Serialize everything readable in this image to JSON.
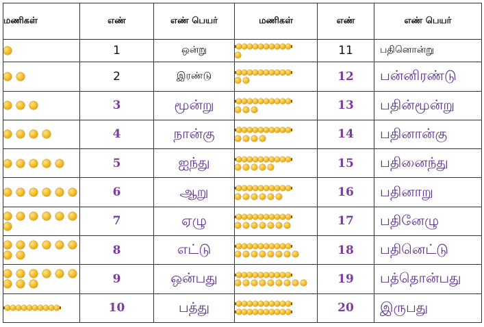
{
  "headers": {
    "beads": "மணிகள்",
    "number": "எண்",
    "name": "எண் பெயர்",
    "beads2": "மணிகள்",
    "number2": "எண்",
    "name2": "எண் பெயர்"
  },
  "rows": [
    {
      "left": {
        "count": 1,
        "num": "1",
        "name": "ஒன்று"
      },
      "right": {
        "count": 11,
        "num": "11",
        "name": "பதினொன்று"
      }
    },
    {
      "left": {
        "count": 2,
        "num": "2",
        "name": "இரண்டு"
      },
      "right": {
        "count": 12,
        "num": "12",
        "name": "பன்னிரண்டு"
      }
    },
    {
      "left": {
        "count": 3,
        "num": "3",
        "name": "மூன்று"
      },
      "right": {
        "count": 13,
        "num": "13",
        "name": "பதின்மூன்று"
      }
    },
    {
      "left": {
        "count": 4,
        "num": "4",
        "name": "நான்கு"
      },
      "right": {
        "count": 14,
        "num": "14",
        "name": "பதினான்கு"
      }
    },
    {
      "left": {
        "count": 5,
        "num": "5",
        "name": "ஐந்து"
      },
      "right": {
        "count": 15,
        "num": "15",
        "name": "பதினைந்து"
      }
    },
    {
      "left": {
        "count": 6,
        "num": "6",
        "name": "ஆறு"
      },
      "right": {
        "count": 16,
        "num": "16",
        "name": "பதினாறு"
      }
    },
    {
      "left": {
        "count": 7,
        "num": "7",
        "name": "ஏழு"
      },
      "right": {
        "count": 17,
        "num": "17",
        "name": "பதினேழு"
      }
    },
    {
      "left": {
        "count": 8,
        "num": "8",
        "name": "எட்டு"
      },
      "right": {
        "count": 18,
        "num": "18",
        "name": "பதினெட்டு"
      }
    },
    {
      "left": {
        "count": 9,
        "num": "9",
        "name": "ஒன்பது"
      },
      "right": {
        "count": 19,
        "num": "19",
        "name": "பத்தொன்பது"
      }
    },
    {
      "left": {
        "count": 10,
        "num": "10",
        "name": "பத்து"
      },
      "right": {
        "count": 20,
        "num": "20",
        "name": "இருபது"
      }
    }
  ],
  "colors": {
    "number_accent": "#7b3d9a",
    "name_accent": "#5e2f8f",
    "bead": "#f2b71f",
    "border": "#333333"
  }
}
